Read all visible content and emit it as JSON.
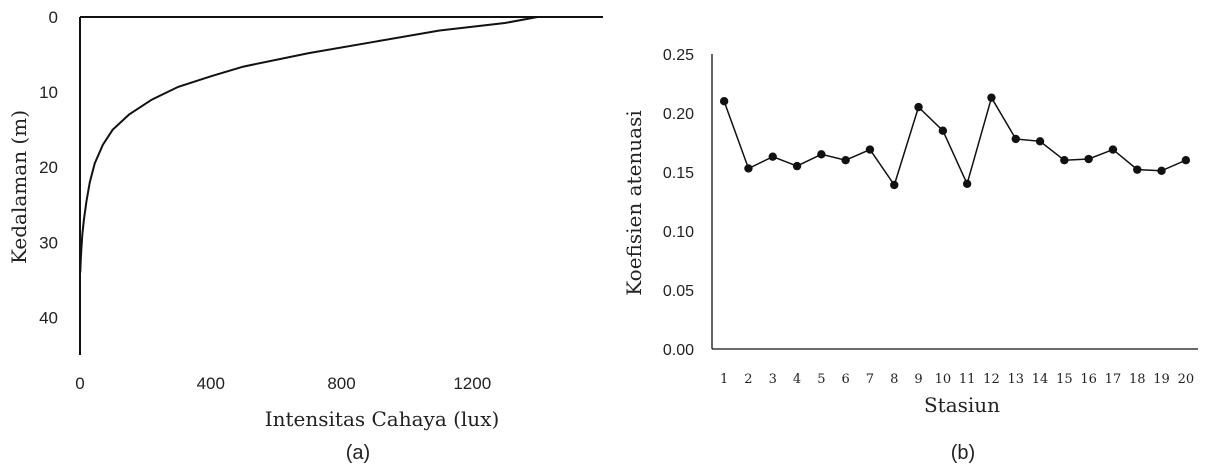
{
  "chart_data": [
    {
      "type": "line",
      "caption": "(a)",
      "xlabel": "Intensitas Cahaya (lux)",
      "ylabel": "Kedalaman (m)",
      "xlim": [
        0,
        1600
      ],
      "ylim": [
        0,
        45
      ],
      "y_inverted": true,
      "x_ticks": [
        "0",
        "400",
        "800",
        "1200"
      ],
      "x_tick_values": [
        0,
        400,
        800,
        1200
      ],
      "y_ticks": [
        "0",
        "10",
        "20",
        "30",
        "40"
      ],
      "y_tick_values": [
        0,
        10,
        20,
        30,
        40
      ],
      "grid": false,
      "legend": "none",
      "series": [
        {
          "x": [
            1400,
            1300,
            1100,
            900,
            700,
            500,
            400,
            300,
            220,
            150,
            100,
            70,
            45,
            30,
            20,
            12,
            7,
            4,
            2,
            1
          ],
          "y": [
            0,
            0.8,
            1.8,
            3.3,
            4.8,
            6.6,
            7.9,
            9.3,
            11,
            13,
            15,
            17,
            19.5,
            22,
            24.5,
            27,
            29,
            31,
            32.5,
            34
          ]
        }
      ]
    },
    {
      "type": "line",
      "caption": "(b)",
      "xlabel": "Stasiun",
      "ylabel": "Koefisien atenuasi",
      "ylim": [
        0,
        0.25
      ],
      "y_ticks": [
        "0.00",
        "0.05",
        "0.10",
        "0.15",
        "0.20",
        "0.25"
      ],
      "y_tick_values": [
        0,
        0.05,
        0.1,
        0.15,
        0.2,
        0.25
      ],
      "categories": [
        "1",
        "2",
        "3",
        "4",
        "5",
        "6",
        "7",
        "8",
        "9",
        "10",
        "11",
        "12",
        "13",
        "14",
        "15",
        "16",
        "17",
        "18",
        "19",
        "20"
      ],
      "grid": false,
      "legend": "none",
      "series": [
        {
          "marker": "circle",
          "values": [
            0.21,
            0.153,
            0.163,
            0.155,
            0.165,
            0.16,
            0.169,
            0.139,
            0.205,
            0.185,
            0.14,
            0.213,
            0.178,
            0.176,
            0.16,
            0.161,
            0.169,
            0.152,
            0.151,
            0.16
          ]
        }
      ]
    }
  ]
}
